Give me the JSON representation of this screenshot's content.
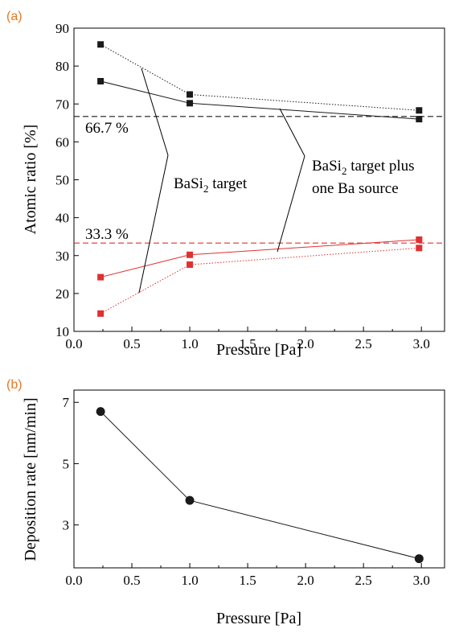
{
  "colors": {
    "black": "#1a1a1a",
    "red": "#e03030",
    "panel_label": "#e87722"
  },
  "chart_data": [
    {
      "panel_label": "(a)",
      "type": "line",
      "xlabel": "Pressure [Pa]",
      "ylabel": "Atomic ratio [%]",
      "xlim": [
        0.0,
        3.2
      ],
      "ylim": [
        10,
        90
      ],
      "xticks": [
        "0.0",
        "0.5",
        "1.0",
        "1.5",
        "2.0",
        "2.5",
        "3.0"
      ],
      "yticks": [
        "10",
        "20",
        "30",
        "40",
        "50",
        "60",
        "70",
        "80",
        "90"
      ],
      "reference_lines": [
        {
          "y": 66.7,
          "label": "66.7 %",
          "color": "black"
        },
        {
          "y": 33.3,
          "label": "33.3 %",
          "color": "red"
        }
      ],
      "series": [
        {
          "color": "black",
          "style": "dotted",
          "x": [
            0.23,
            1.0,
            2.98
          ],
          "y": [
            85.7,
            72.5,
            68.3
          ]
        },
        {
          "color": "black",
          "style": "solid",
          "x": [
            0.23,
            1.0,
            2.98
          ],
          "y": [
            76.0,
            70.2,
            66.0
          ]
        },
        {
          "color": "red",
          "style": "solid",
          "x": [
            0.23,
            1.0,
            2.98
          ],
          "y": [
            24.3,
            30.2,
            34.2
          ]
        },
        {
          "color": "red",
          "style": "dotted",
          "x": [
            0.23,
            1.0,
            2.98
          ],
          "y": [
            14.7,
            27.6,
            32.0
          ]
        }
      ],
      "annotations": [
        {
          "main": "BaSi",
          "sub": "2",
          "rest": " target"
        },
        {
          "main": "BaSi",
          "sub": "2",
          "rest": " target plus",
          "line2": "one Ba source"
        }
      ]
    },
    {
      "panel_label": "(b)",
      "type": "line",
      "xlabel": "Pressure [Pa]",
      "ylabel": "Deposition rate [nm/min]",
      "xlim": [
        0.0,
        3.2
      ],
      "ylim": [
        1.6,
        7.4
      ],
      "xticks": [
        "0.0",
        "0.5",
        "1.0",
        "1.5",
        "2.0",
        "2.5",
        "3.0"
      ],
      "yticks": [
        "3",
        "5",
        "7"
      ],
      "series": [
        {
          "color": "black",
          "style": "solid",
          "marker": "circle",
          "x": [
            0.23,
            1.0,
            2.98
          ],
          "y": [
            6.7,
            3.8,
            1.9
          ]
        }
      ]
    }
  ]
}
